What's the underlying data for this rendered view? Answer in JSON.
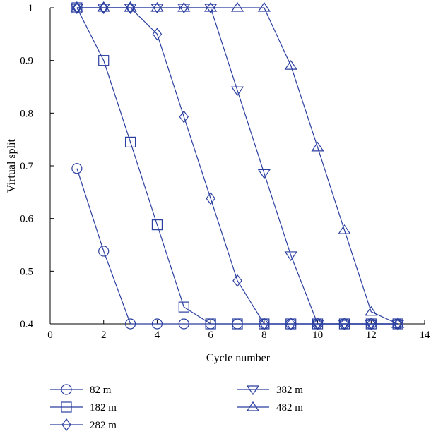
{
  "chart_data": {
    "type": "line",
    "title": "",
    "xlabel": "Cycle number",
    "ylabel": "Virtual split",
    "xlim": [
      0,
      14
    ],
    "ylim": [
      0.4,
      1.0
    ],
    "xticks": [
      "0",
      "2",
      "4",
      "6",
      "8",
      "10",
      "12",
      "14"
    ],
    "yticks": [
      "0.4",
      "0.5",
      "0.6",
      "0.7",
      "0.8",
      "0.9",
      "1"
    ],
    "grid": false,
    "legend_position": "bottom",
    "line_color": "#2b3fa0",
    "series": [
      {
        "name": "82 m",
        "marker": "circle",
        "x": [
          1,
          2,
          3,
          4,
          5,
          6,
          7,
          8,
          9,
          10,
          11,
          12,
          13
        ],
        "y": [
          0.695,
          0.538,
          0.4,
          0.4,
          0.4,
          0.4,
          0.4,
          0.4,
          0.4,
          0.4,
          0.4,
          0.4,
          0.4
        ]
      },
      {
        "name": "182 m",
        "marker": "square",
        "x": [
          1,
          2,
          3,
          4,
          5,
          6,
          7,
          8,
          9,
          10,
          11,
          12,
          13
        ],
        "y": [
          1.0,
          0.9,
          0.745,
          0.588,
          0.432,
          0.4,
          0.4,
          0.4,
          0.4,
          0.4,
          0.4,
          0.4,
          0.4
        ]
      },
      {
        "name": "282 m",
        "marker": "diamond",
        "x": [
          1,
          2,
          3,
          4,
          5,
          6,
          7,
          8,
          9,
          10,
          11,
          12,
          13
        ],
        "y": [
          1.0,
          1.0,
          1.0,
          0.95,
          0.793,
          0.638,
          0.482,
          0.4,
          0.4,
          0.4,
          0.4,
          0.4,
          0.4
        ]
      },
      {
        "name": "382 m",
        "marker": "triangle-down",
        "x": [
          1,
          2,
          3,
          4,
          5,
          6,
          7,
          8,
          9,
          10,
          11,
          12,
          13
        ],
        "y": [
          1.0,
          1.0,
          1.0,
          1.0,
          1.0,
          1.0,
          0.843,
          0.686,
          0.53,
          0.4,
          0.4,
          0.4,
          0.4
        ]
      },
      {
        "name": "482 m",
        "marker": "triangle-up",
        "x": [
          1,
          2,
          3,
          4,
          5,
          6,
          7,
          8,
          9,
          10,
          11,
          12,
          13
        ],
        "y": [
          1.0,
          1.0,
          1.0,
          1.0,
          1.0,
          1.0,
          1.0,
          1.0,
          0.89,
          0.735,
          0.578,
          0.423,
          0.4
        ]
      }
    ]
  }
}
